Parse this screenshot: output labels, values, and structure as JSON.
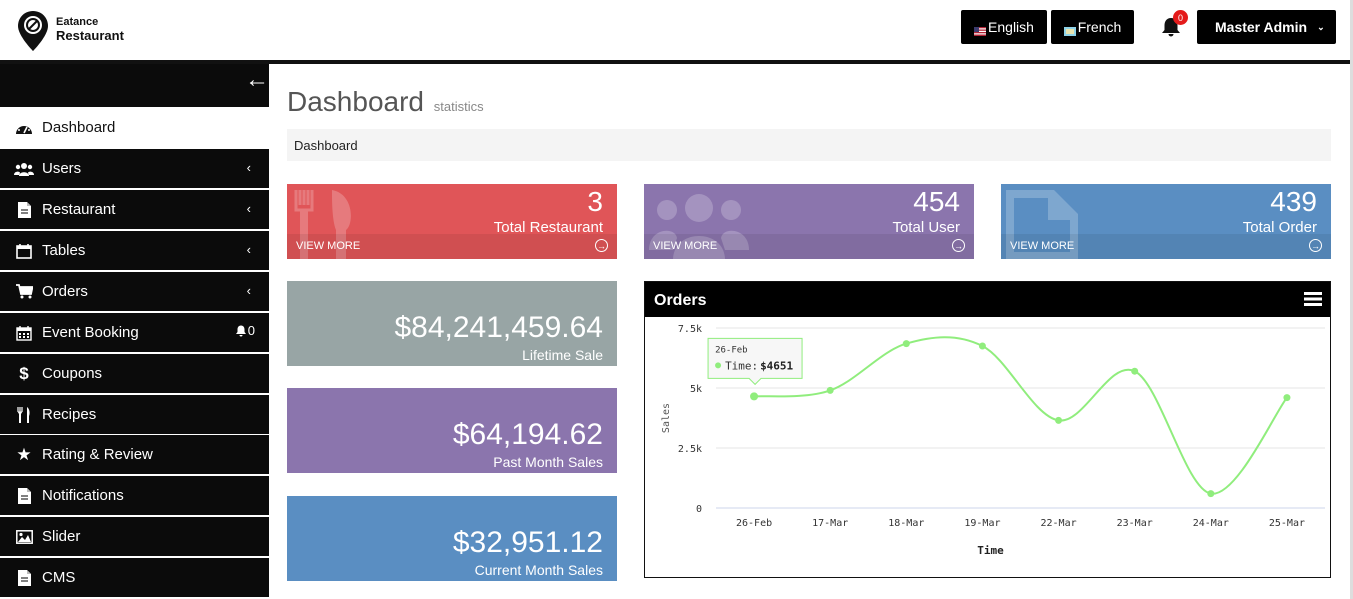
{
  "header": {
    "logo_line1": "Eatance",
    "logo_line2": "Restaurant",
    "lang_english": "English",
    "lang_french": "French",
    "notification_count": "0",
    "user_label": "Master Admin"
  },
  "sidebar": {
    "items": [
      {
        "label": "Dashboard",
        "icon": "dashboard-icon"
      },
      {
        "label": "Users",
        "icon": "users-icon"
      },
      {
        "label": "Restaurant",
        "icon": "document-icon"
      },
      {
        "label": "Tables",
        "icon": "calendar-icon"
      },
      {
        "label": "Orders",
        "icon": "cart-icon"
      },
      {
        "label": "Event Booking",
        "icon": "calendar-grid-icon",
        "badge": "0"
      },
      {
        "label": "Coupons",
        "icon": "dollar-icon"
      },
      {
        "label": "Recipes",
        "icon": "fork-knife-icon"
      },
      {
        "label": "Rating & Review",
        "icon": "star-icon"
      },
      {
        "label": "Notifications",
        "icon": "document-icon"
      },
      {
        "label": "Slider",
        "icon": "image-icon"
      },
      {
        "label": "CMS",
        "icon": "document-icon"
      }
    ]
  },
  "page": {
    "title": "Dashboard",
    "subtitle": "statistics",
    "breadcrumb": "Dashboard"
  },
  "stats": [
    {
      "value": "3",
      "label": "Total Restaurant",
      "link": "VIEW MORE",
      "color": "#e05558"
    },
    {
      "value": "454",
      "label": "Total User",
      "link": "VIEW MORE",
      "color": "#8b75ad"
    },
    {
      "value": "439",
      "label": "Total Order",
      "link": "VIEW MORE",
      "color": "#5a8ec2"
    }
  ],
  "sales": [
    {
      "value": "$84,241,459.64",
      "label": "Lifetime Sale"
    },
    {
      "value": "$64,194.62",
      "label": "Past Month Sales"
    },
    {
      "value": "$32,951.12",
      "label": "Current Month Sales"
    }
  ],
  "orders_card": {
    "title": "Orders"
  },
  "chart_data": {
    "type": "line",
    "title": "",
    "xlabel": "Time",
    "ylabel": "Sales",
    "categories": [
      "26-Feb",
      "17-Mar",
      "18-Mar",
      "19-Mar",
      "22-Mar",
      "23-Mar",
      "24-Mar",
      "25-Mar"
    ],
    "series": [
      {
        "values": [
          4651,
          4900,
          6850,
          6750,
          3650,
          5700,
          600,
          4600
        ]
      }
    ],
    "ylim": [
      0,
      7500
    ],
    "yticks": [
      "0",
      "2.5k",
      "5k",
      "7.5k"
    ],
    "ytick_values": [
      0,
      2500,
      5000,
      7500
    ],
    "grid": true,
    "line_color": "#90ed7d",
    "tooltip": {
      "title": "26-Feb",
      "series": "Time",
      "value": "$4651"
    }
  }
}
